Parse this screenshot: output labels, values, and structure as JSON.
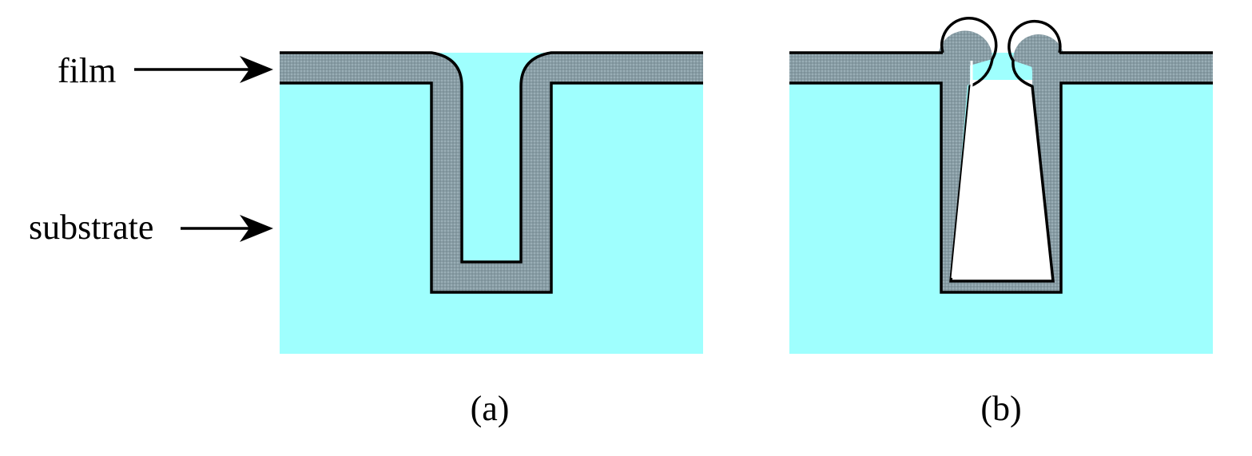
{
  "labels": {
    "film": "film",
    "substrate": "substrate"
  },
  "captions": {
    "a": "(a)",
    "b": "(b)"
  },
  "colors": {
    "substrate": "#9ffffe",
    "film": "#879ca4",
    "outline": "#000000",
    "void": "#ffffff"
  }
}
